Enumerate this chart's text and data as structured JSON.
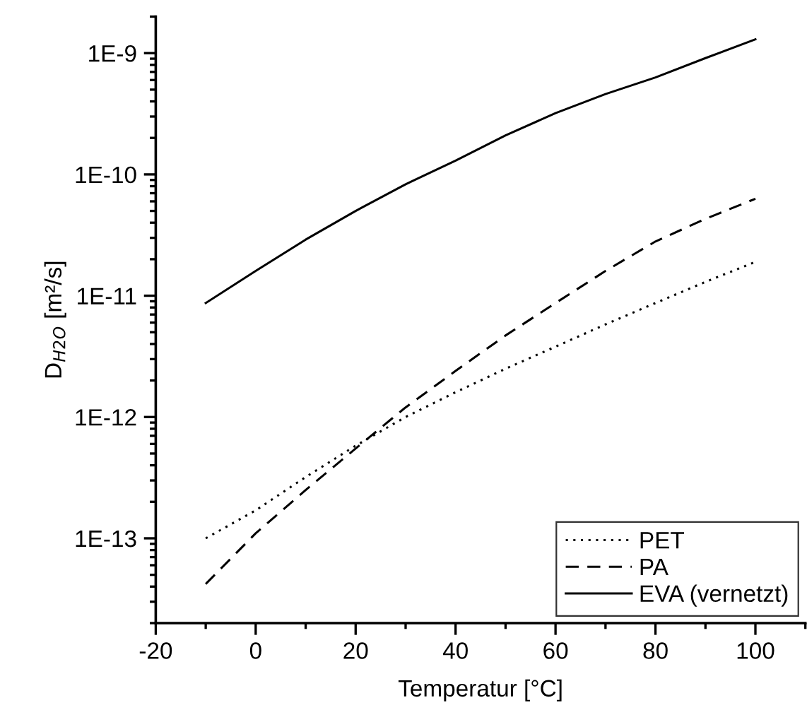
{
  "chart_data": {
    "type": "line",
    "xlabel": "Temperatur [°C]",
    "ylabel": "D$_{H2O}$ [m²/s]",
    "x": [
      -10,
      0,
      10,
      20,
      30,
      40,
      50,
      60,
      70,
      80,
      90,
      100
    ],
    "series": [
      {
        "name": "PET",
        "color": "#000000",
        "line_style": "dotted",
        "values": [
          1e-13,
          1.7e-13,
          3.2e-13,
          5.8e-13,
          1e-12,
          1.6e-12,
          2.5e-12,
          3.8e-12,
          5.8e-12,
          8.7e-12,
          1.3e-11,
          1.9e-11
        ]
      },
      {
        "name": "PA",
        "color": "#000000",
        "line_style": "dashed",
        "values": [
          4.2e-14,
          1.1e-13,
          2.5e-13,
          5.5e-13,
          1.2e-12,
          2.4e-12,
          4.7e-12,
          8.7e-12,
          1.6e-11,
          2.8e-11,
          4.3e-11,
          6.3e-11
        ]
      },
      {
        "name": "EVA (vernetzt)",
        "color": "#000000",
        "line_style": "solid",
        "values": [
          8.7e-12,
          1.6e-11,
          2.9e-11,
          5e-11,
          8.3e-11,
          1.3e-10,
          2.1e-10,
          3.2e-10,
          4.6e-10,
          6.3e-10,
          9.1e-10,
          1.3e-09
        ]
      }
    ],
    "log": "y",
    "xlim": [
      -20,
      110
    ],
    "ylim": [
      2e-14,
      2e-09
    ],
    "xticks": [
      -20,
      0,
      20,
      40,
      60,
      80,
      100
    ],
    "yticks": [
      {
        "value": 1e-13,
        "label": "1E-13"
      },
      {
        "value": 1e-12,
        "label": "1E-12"
      },
      {
        "value": 1e-11,
        "label": "1E-11"
      },
      {
        "value": 1e-10,
        "label": "1E-10"
      },
      {
        "value": 1e-09,
        "label": "1E-9"
      }
    ],
    "legend": "bottom right",
    "grid": false,
    "marker": "none"
  }
}
